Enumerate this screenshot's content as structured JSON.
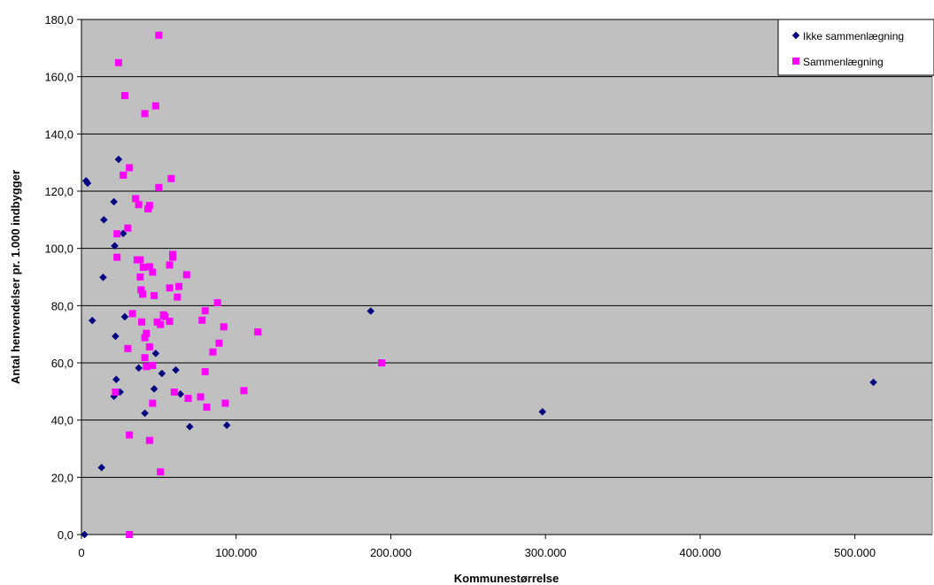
{
  "chart_data": {
    "type": "scatter",
    "xlabel": "Kommunestørrelse",
    "ylabel": "Antal henvendelser pr. 1.000 indbygger",
    "xlim": [
      0,
      550000
    ],
    "ylim": [
      0,
      180
    ],
    "x_ticks": [
      0,
      100000,
      200000,
      300000,
      400000,
      500000
    ],
    "x_tick_labels": [
      "0",
      "100.000",
      "200.000",
      "300.000",
      "400.000",
      "500.000"
    ],
    "y_ticks": [
      0,
      20,
      40,
      60,
      80,
      100,
      120,
      140,
      160,
      180
    ],
    "y_tick_labels": [
      "0,0",
      "20,0",
      "40,0",
      "60,0",
      "80,0",
      "100,0",
      "120,0",
      "140,0",
      "160,0",
      "180,0"
    ],
    "grid": "horizontal",
    "plot_background": "#c0c0c0",
    "legend_position": "top-right",
    "series": [
      {
        "name": "Ikke sammenlægning",
        "marker": "diamond",
        "color": "#000080",
        "points": [
          [
            2000,
            0
          ],
          [
            3000,
            123.6
          ],
          [
            4000,
            122.8
          ],
          [
            7000,
            74.8
          ],
          [
            13000,
            23.4
          ],
          [
            14000,
            89.9
          ],
          [
            14500,
            110
          ],
          [
            21000,
            116.3
          ],
          [
            21000,
            48.3
          ],
          [
            21500,
            100.9
          ],
          [
            22000,
            69.3
          ],
          [
            22500,
            54.2
          ],
          [
            24000,
            131.1
          ],
          [
            25000,
            49.8
          ],
          [
            27000,
            105.2
          ],
          [
            28000,
            76.1
          ],
          [
            37000,
            58.2
          ],
          [
            41000,
            42.4
          ],
          [
            47000,
            50.9
          ],
          [
            48000,
            63.3
          ],
          [
            52000,
            56.3
          ],
          [
            61000,
            57.5
          ],
          [
            64000,
            49.1
          ],
          [
            70000,
            37.7
          ],
          [
            94000,
            38.2
          ],
          [
            187000,
            78.1
          ],
          [
            298000,
            42.9
          ],
          [
            512000,
            53.2
          ]
        ]
      },
      {
        "name": "Sammenlægning",
        "marker": "square",
        "color": "#ff00ff",
        "points": [
          [
            50000,
            174.5
          ],
          [
            24000,
            164.9
          ],
          [
            28000,
            153.4
          ],
          [
            48000,
            149.8
          ],
          [
            41000,
            147.1
          ],
          [
            31000,
            128.2
          ],
          [
            27000,
            125.6
          ],
          [
            58000,
            124.4
          ],
          [
            50000,
            121.3
          ],
          [
            35000,
            117.4
          ],
          [
            37000,
            115.3
          ],
          [
            44000,
            115
          ],
          [
            43000,
            113.8
          ],
          [
            30000,
            107.1
          ],
          [
            23000,
            105.1
          ],
          [
            59000,
            97.9
          ],
          [
            59000,
            96.9
          ],
          [
            36000,
            96
          ],
          [
            38000,
            96
          ],
          [
            23000,
            96.9
          ],
          [
            40000,
            93.4
          ],
          [
            44000,
            93.6
          ],
          [
            57000,
            94.2
          ],
          [
            46000,
            91.7
          ],
          [
            68000,
            90.8
          ],
          [
            38000,
            90
          ],
          [
            38500,
            85.5
          ],
          [
            39500,
            84
          ],
          [
            47000,
            83.5
          ],
          [
            57000,
            86.2
          ],
          [
            63000,
            86.7
          ],
          [
            62000,
            83
          ],
          [
            88000,
            81
          ],
          [
            33000,
            77.2
          ],
          [
            80000,
            78.2
          ],
          [
            53000,
            76.8
          ],
          [
            54000,
            76.2
          ],
          [
            39000,
            74.3
          ],
          [
            49000,
            74.3
          ],
          [
            51000,
            73.4
          ],
          [
            57000,
            74.5
          ],
          [
            78000,
            74.9
          ],
          [
            92000,
            72.6
          ],
          [
            114000,
            70.8
          ],
          [
            42000,
            70.3
          ],
          [
            41000,
            68.8
          ],
          [
            89000,
            66.9
          ],
          [
            30000,
            65
          ],
          [
            44000,
            65.6
          ],
          [
            85000,
            63.8
          ],
          [
            41000,
            61.8
          ],
          [
            194000,
            60
          ],
          [
            46000,
            59.1
          ],
          [
            42000,
            58.7
          ],
          [
            80000,
            56.9
          ],
          [
            22000,
            49.8
          ],
          [
            60000,
            49.8
          ],
          [
            105000,
            50.3
          ],
          [
            69000,
            47.6
          ],
          [
            77000,
            48.1
          ],
          [
            46000,
            45.9
          ],
          [
            81000,
            44.5
          ],
          [
            93000,
            45.9
          ],
          [
            31000,
            34.8
          ],
          [
            44000,
            32.9
          ],
          [
            51000,
            21.9
          ],
          [
            31000,
            0
          ]
        ]
      }
    ]
  }
}
